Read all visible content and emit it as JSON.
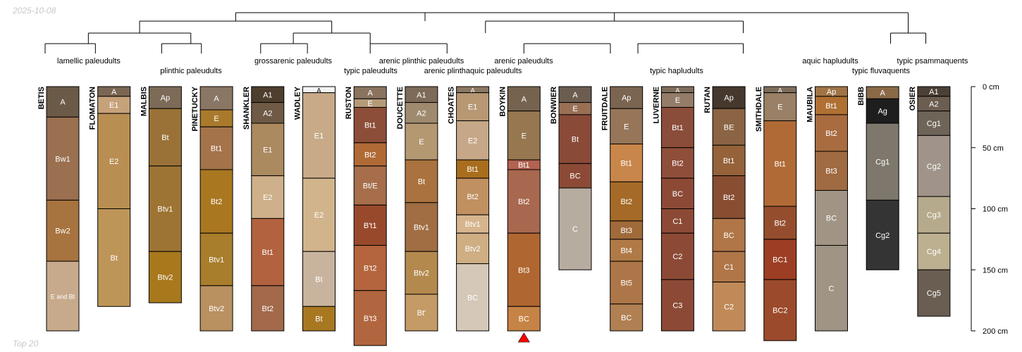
{
  "date_label": "2025-10-08",
  "footer_label": "Top 20",
  "dendrogram": {
    "taxa": [
      "lamellic paleudults",
      "plinthic paleudults",
      "grossarenic paleudults",
      "typic paleudults",
      "arenic plinthic paleudults",
      "arenic plinthaquic paleudults",
      "arenic paleudults",
      "typic hapludults",
      "aquic hapludults",
      "typic fluvaquents",
      "typic psammaquents"
    ]
  },
  "depth_axis": {
    "unit": "cm",
    "max": 200,
    "ticks": [
      0,
      50,
      100,
      150,
      200
    ]
  },
  "colors": {
    "line": "#000000",
    "horizon_border": "#000000",
    "marker": "#ff0000"
  },
  "profiles": [
    {
      "name": "BETIS",
      "horizons": [
        {
          "name": "A",
          "top": 0,
          "bottom": 25,
          "color": "#6b5a48"
        },
        {
          "name": "Bw1",
          "top": 25,
          "bottom": 93,
          "color": "#9a7050"
        },
        {
          "name": "Bw2",
          "top": 93,
          "bottom": 143,
          "color": "#a7733e"
        },
        {
          "name": "E and Bt",
          "top": 143,
          "bottom": 200,
          "color": "#c7aa8b"
        }
      ]
    },
    {
      "name": "FLOMATON",
      "horizons": [
        {
          "name": "A",
          "top": 0,
          "bottom": 8,
          "color": "#7a6653"
        },
        {
          "name": "E1",
          "top": 8,
          "bottom": 22,
          "color": "#c6a27a"
        },
        {
          "name": "E2",
          "top": 22,
          "bottom": 100,
          "color": "#b98e52"
        },
        {
          "name": "Bt",
          "top": 100,
          "bottom": 180,
          "color": "#be9558"
        }
      ]
    },
    {
      "name": "MALBIS",
      "horizons": [
        {
          "name": "Ap",
          "top": 0,
          "bottom": 18,
          "color": "#7d6b58"
        },
        {
          "name": "Bt",
          "top": 18,
          "bottom": 65,
          "color": "#9a7237"
        },
        {
          "name": "Btv1",
          "top": 65,
          "bottom": 135,
          "color": "#9e7434"
        },
        {
          "name": "Btv2",
          "top": 135,
          "bottom": 177,
          "color": "#a8781d"
        }
      ]
    },
    {
      "name": "PINETUCKY",
      "horizons": [
        {
          "name": "A",
          "top": 0,
          "bottom": 19,
          "color": "#8a7665"
        },
        {
          "name": "E",
          "top": 19,
          "bottom": 33,
          "color": "#a97a2c"
        },
        {
          "name": "Bt1",
          "top": 33,
          "bottom": 68,
          "color": "#a4734a"
        },
        {
          "name": "Bt2",
          "top": 68,
          "bottom": 120,
          "color": "#a97720"
        },
        {
          "name": "Btv1",
          "top": 120,
          "bottom": 163,
          "color": "#a87d2c"
        },
        {
          "name": "Btv2",
          "top": 163,
          "bottom": 200,
          "color": "#b99060"
        }
      ]
    },
    {
      "name": "SHANKLER",
      "horizons": [
        {
          "name": "A1",
          "top": 0,
          "bottom": 13,
          "color": "#4e3e2e"
        },
        {
          "name": "A2",
          "top": 13,
          "bottom": 30,
          "color": "#6e5a45"
        },
        {
          "name": "E1",
          "top": 30,
          "bottom": 73,
          "color": "#ab8a60"
        },
        {
          "name": "E2",
          "top": 73,
          "bottom": 108,
          "color": "#ceb08a"
        },
        {
          "name": "Bt1",
          "top": 108,
          "bottom": 163,
          "color": "#b2623e"
        },
        {
          "name": "Bt2",
          "top": 163,
          "bottom": 200,
          "color": "#a2694b"
        }
      ]
    },
    {
      "name": "WADLEY",
      "horizons": [
        {
          "name": "A",
          "top": 0,
          "bottom": 5,
          "color": "#f4f4f4"
        },
        {
          "name": "E1",
          "top": 5,
          "bottom": 75,
          "color": "#c8aa88"
        },
        {
          "name": "E2",
          "top": 75,
          "bottom": 135,
          "color": "#d2b48c"
        },
        {
          "name": "Bt",
          "top": 135,
          "bottom": 180,
          "color": "#c8b49e"
        },
        {
          "name": "Bt",
          "top": 180,
          "bottom": 200,
          "color": "#a87820"
        }
      ]
    },
    {
      "name": "RUSTON",
      "horizons": [
        {
          "name": "A",
          "top": 0,
          "bottom": 10,
          "color": "#8a7460"
        },
        {
          "name": "E",
          "top": 10,
          "bottom": 17,
          "color": "#b59a78"
        },
        {
          "name": "Bt1",
          "top": 17,
          "bottom": 46,
          "color": "#8c4e38"
        },
        {
          "name": "Bt2",
          "top": 46,
          "bottom": 65,
          "color": "#b06a36"
        },
        {
          "name": "Bt/E",
          "top": 65,
          "bottom": 97,
          "color": "#a66e4b"
        },
        {
          "name": "B't1",
          "top": 97,
          "bottom": 130,
          "color": "#98492c"
        },
        {
          "name": "B't2",
          "top": 130,
          "bottom": 167,
          "color": "#b4653d"
        },
        {
          "name": "B't3",
          "top": 167,
          "bottom": 212,
          "color": "#b2663f"
        }
      ]
    },
    {
      "name": "DOUCETTE",
      "horizons": [
        {
          "name": "A1",
          "top": 0,
          "bottom": 13,
          "color": "#7d6a58"
        },
        {
          "name": "A2",
          "top": 13,
          "bottom": 30,
          "color": "#9f8a6f"
        },
        {
          "name": "E",
          "top": 30,
          "bottom": 60,
          "color": "#b49872"
        },
        {
          "name": "Bt",
          "top": 60,
          "bottom": 95,
          "color": "#a9723e"
        },
        {
          "name": "Btv1",
          "top": 95,
          "bottom": 135,
          "color": "#a06e42"
        },
        {
          "name": "Btv2",
          "top": 135,
          "bottom": 170,
          "color": "#b4894e"
        },
        {
          "name": "Bt'",
          "top": 170,
          "bottom": 200,
          "color": "#c49a66"
        }
      ]
    },
    {
      "name": "CHOATES",
      "horizons": [
        {
          "name": "A",
          "top": 0,
          "bottom": 5,
          "color": "#8c7862"
        },
        {
          "name": "E1",
          "top": 5,
          "bottom": 28,
          "color": "#b79873"
        },
        {
          "name": "E2",
          "top": 28,
          "bottom": 60,
          "color": "#c6a888"
        },
        {
          "name": "Bt1",
          "top": 60,
          "bottom": 75,
          "color": "#a86e1e"
        },
        {
          "name": "Bt2",
          "top": 75,
          "bottom": 105,
          "color": "#c09060"
        },
        {
          "name": "Btv1",
          "top": 105,
          "bottom": 120,
          "color": "#d6b58e"
        },
        {
          "name": "Btv2",
          "top": 120,
          "bottom": 145,
          "color": "#cfae84"
        },
        {
          "name": "BC",
          "top": 145,
          "bottom": 200,
          "color": "#d6c8b8"
        }
      ]
    },
    {
      "name": "BOYKIN",
      "marker": true,
      "horizons": [
        {
          "name": "A",
          "top": 0,
          "bottom": 20,
          "color": "#76634f"
        },
        {
          "name": "E",
          "top": 20,
          "bottom": 60,
          "color": "#96774f"
        },
        {
          "name": "Bt1",
          "top": 60,
          "bottom": 68,
          "color": "#b26250"
        },
        {
          "name": "Bt2",
          "top": 68,
          "bottom": 120,
          "color": "#a8684f"
        },
        {
          "name": "Bt3",
          "top": 120,
          "bottom": 180,
          "color": "#b06630"
        },
        {
          "name": "BC",
          "top": 180,
          "bottom": 200,
          "color": "#c68346"
        }
      ]
    },
    {
      "name": "BONWIER",
      "horizons": [
        {
          "name": "A",
          "top": 0,
          "bottom": 13,
          "color": "#6b5d50"
        },
        {
          "name": "E",
          "top": 13,
          "bottom": 23,
          "color": "#9a7055"
        },
        {
          "name": "Bt",
          "top": 23,
          "bottom": 63,
          "color": "#8a4a38"
        },
        {
          "name": "BC",
          "top": 63,
          "bottom": 83,
          "color": "#8c4a36"
        },
        {
          "name": "C",
          "top": 83,
          "bottom": 150,
          "color": "#b7aca0"
        }
      ]
    },
    {
      "name": "FRUITDALE",
      "horizons": [
        {
          "name": "Ap",
          "top": 0,
          "bottom": 18,
          "color": "#7b6450"
        },
        {
          "name": "E",
          "top": 18,
          "bottom": 47,
          "color": "#967558"
        },
        {
          "name": "Bt1",
          "top": 47,
          "bottom": 78,
          "color": "#c9864a"
        },
        {
          "name": "Bt2",
          "top": 78,
          "bottom": 110,
          "color": "#a56a28"
        },
        {
          "name": "Bt3",
          "top": 110,
          "bottom": 125,
          "color": "#a06a3a"
        },
        {
          "name": "Bt4",
          "top": 125,
          "bottom": 143,
          "color": "#b07a46"
        },
        {
          "name": "Bt5",
          "top": 143,
          "bottom": 178,
          "color": "#ad7648"
        },
        {
          "name": "BC",
          "top": 178,
          "bottom": 200,
          "color": "#b08052"
        }
      ]
    },
    {
      "name": "LUVERNE",
      "horizons": [
        {
          "name": "A",
          "top": 0,
          "bottom": 5,
          "color": "#7f6d5c"
        },
        {
          "name": "E",
          "top": 5,
          "bottom": 17,
          "color": "#947c68"
        },
        {
          "name": "Bt1",
          "top": 17,
          "bottom": 50,
          "color": "#8a4d3a"
        },
        {
          "name": "Bt2",
          "top": 50,
          "bottom": 75,
          "color": "#8f4e39"
        },
        {
          "name": "BC",
          "top": 75,
          "bottom": 100,
          "color": "#8c4a36"
        },
        {
          "name": "C1",
          "top": 100,
          "bottom": 120,
          "color": "#8c4a36"
        },
        {
          "name": "C2",
          "top": 120,
          "bottom": 158,
          "color": "#8c4a36"
        },
        {
          "name": "C3",
          "top": 158,
          "bottom": 200,
          "color": "#8c4a36"
        }
      ]
    },
    {
      "name": "RUTAN",
      "horizons": [
        {
          "name": "Ap",
          "top": 0,
          "bottom": 18,
          "color": "#46382c"
        },
        {
          "name": "BE",
          "top": 18,
          "bottom": 48,
          "color": "#8a6444"
        },
        {
          "name": "Bt1",
          "top": 48,
          "bottom": 73,
          "color": "#95623a"
        },
        {
          "name": "Bt2",
          "top": 73,
          "bottom": 108,
          "color": "#884e32"
        },
        {
          "name": "BC",
          "top": 108,
          "bottom": 135,
          "color": "#b07648"
        },
        {
          "name": "C1",
          "top": 135,
          "bottom": 160,
          "color": "#b07648"
        },
        {
          "name": "C2",
          "top": 160,
          "bottom": 200,
          "color": "#c08a58"
        }
      ]
    },
    {
      "name": "SMITHDALE",
      "horizons": [
        {
          "name": "A",
          "top": 0,
          "bottom": 5,
          "color": "#7f6d5c"
        },
        {
          "name": "E",
          "top": 5,
          "bottom": 28,
          "color": "#9a8066"
        },
        {
          "name": "Bt1",
          "top": 28,
          "bottom": 98,
          "color": "#b06a36"
        },
        {
          "name": "Bt2",
          "top": 98,
          "bottom": 125,
          "color": "#944e2e"
        },
        {
          "name": "BC1",
          "top": 125,
          "bottom": 158,
          "color": "#9c3e24"
        },
        {
          "name": "BC2",
          "top": 158,
          "bottom": 208,
          "color": "#9c4a2c"
        }
      ]
    },
    {
      "name": "MAUBILA",
      "horizons": [
        {
          "name": "Ap",
          "top": 0,
          "bottom": 8,
          "color": "#a07446"
        },
        {
          "name": "Bt1",
          "top": 8,
          "bottom": 23,
          "color": "#b07034"
        },
        {
          "name": "Bt2",
          "top": 23,
          "bottom": 53,
          "color": "#a86c40"
        },
        {
          "name": "Bt3",
          "top": 53,
          "bottom": 85,
          "color": "#a06a42"
        },
        {
          "name": "BC",
          "top": 85,
          "bottom": 130,
          "color": "#a19484"
        },
        {
          "name": "C",
          "top": 130,
          "bottom": 200,
          "color": "#a09484"
        }
      ]
    },
    {
      "name": "BIBB",
      "horizons": [
        {
          "name": "A",
          "top": 0,
          "bottom": 10,
          "color": "#8a6a46"
        },
        {
          "name": "Ag",
          "top": 10,
          "bottom": 30,
          "color": "#1e1e1e"
        },
        {
          "name": "Cg1",
          "top": 30,
          "bottom": 93,
          "color": "#7e786c"
        },
        {
          "name": "Cg2",
          "top": 93,
          "bottom": 150,
          "color": "#343434"
        }
      ]
    },
    {
      "name": "OSIER",
      "horizons": [
        {
          "name": "A1",
          "top": 0,
          "bottom": 8,
          "color": "#4c4036"
        },
        {
          "name": "A2",
          "top": 8,
          "bottom": 20,
          "color": "#6b5d50"
        },
        {
          "name": "Cg1",
          "top": 20,
          "bottom": 40,
          "color": "#6e6458"
        },
        {
          "name": "Cg2",
          "top": 40,
          "bottom": 90,
          "color": "#a0948a"
        },
        {
          "name": "Cg3",
          "top": 90,
          "bottom": 120,
          "color": "#b6aa8c"
        },
        {
          "name": "Cg4",
          "top": 120,
          "bottom": 150,
          "color": "#bcb090"
        },
        {
          "name": "Cg5",
          "top": 150,
          "bottom": 188,
          "color": "#6a5e52"
        }
      ]
    }
  ]
}
